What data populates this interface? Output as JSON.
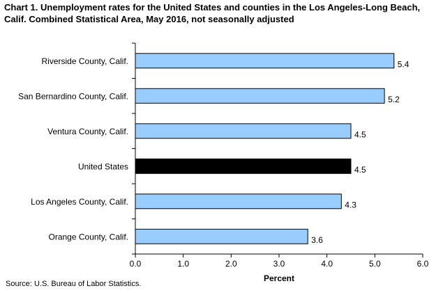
{
  "title": {
    "line1": "Chart 1. Unemployment rates for the United States and counties in the Los Angeles-Long Beach,",
    "line2": "Calif. Combined Statistical Area, May 2016, not seasonally adjusted"
  },
  "source": "Source: U.S. Bureau of Labor Statistics.",
  "colors": {
    "county_bar": "#99ccff",
    "us_bar": "#000000",
    "bar_border": "#000000",
    "axis": "#000000"
  },
  "chart_data": {
    "type": "bar",
    "orientation": "horizontal",
    "title": "Chart 1. Unemployment rates for the United States and counties in the Los Angeles-Long Beach, Calif. Combined Statistical Area, May 2016, not seasonally adjusted",
    "categories": [
      "Riverside County, Calif.",
      "San Bernardino County, Calif.",
      "Ventura County, Calif.",
      "United States",
      "Los Angeles County, Calif.",
      "Orange County, Calif."
    ],
    "values": [
      5.4,
      5.2,
      4.5,
      4.5,
      4.3,
      3.6
    ],
    "value_labels": [
      "5.4",
      "5.2",
      "4.5",
      "4.5",
      "4.3",
      "3.6"
    ],
    "highlight": "United States",
    "xlabel": "Percent",
    "ylabel": "",
    "xlim": [
      0,
      6
    ],
    "xticks": [
      "0.0",
      "1.0",
      "2.0",
      "3.0",
      "4.0",
      "5.0",
      "6.0"
    ],
    "grid": false,
    "legend": "none"
  }
}
